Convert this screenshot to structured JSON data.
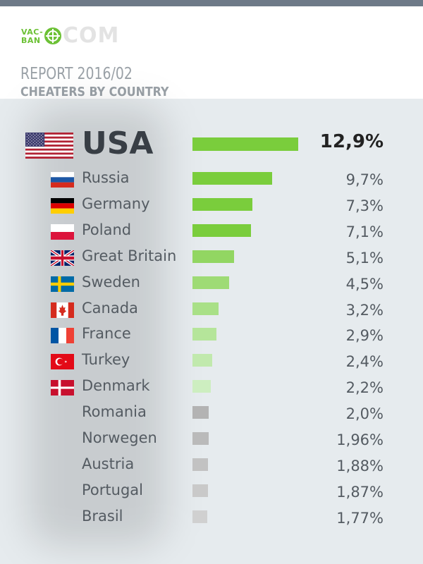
{
  "brand": {
    "vac": "VAC-",
    "ban": "BAN",
    "com": "COM"
  },
  "report": {
    "title": "REPORT 2016/02",
    "subtitle": "CHEATERS BY COUNTRY"
  },
  "colors": {
    "green_dark": "#7acd3c",
    "green_light": "#cdeec0",
    "gray_dark": "#b3b3b3",
    "gray_light": "#d0d0d0",
    "header_bg": "#ffffff",
    "page_bg": "#e6ebee",
    "top_bar": "#6e7a88"
  },
  "chart_data": {
    "type": "bar",
    "orientation": "horizontal",
    "title": "CHEATERS BY COUNTRY",
    "categories": [
      "USA",
      "Russia",
      "Germany",
      "Poland",
      "Great Britain",
      "Sweden",
      "Canada",
      "France",
      "Turkey",
      "Denmark",
      "Romania",
      "Norwegen",
      "Austria",
      "Portugal",
      "Brasil"
    ],
    "value_labels": [
      "12,9%",
      "9,7%",
      "7,3%",
      "7,1%",
      "5,1%",
      "4,5%",
      "3,2%",
      "2,9%",
      "2,4%",
      "2,2%",
      "2,0%",
      "1,96%",
      "1,88%",
      "1,87%",
      "1,77%"
    ],
    "values": [
      12.9,
      9.7,
      7.3,
      7.1,
      5.1,
      4.5,
      3.2,
      2.9,
      2.4,
      2.2,
      2.0,
      1.96,
      1.88,
      1.87,
      1.77
    ],
    "flags": [
      "us-flag-icon",
      "ru-flag-icon",
      "de-flag-icon",
      "pl-flag-icon",
      "gb-flag-icon",
      "se-flag-icon",
      "ca-flag-icon",
      "fr-flag-icon",
      "tr-flag-icon",
      "dk-flag-icon",
      "",
      "",
      "",
      "",
      ""
    ],
    "xlim": [
      0,
      12.9
    ],
    "grid": false,
    "legend": "none"
  }
}
